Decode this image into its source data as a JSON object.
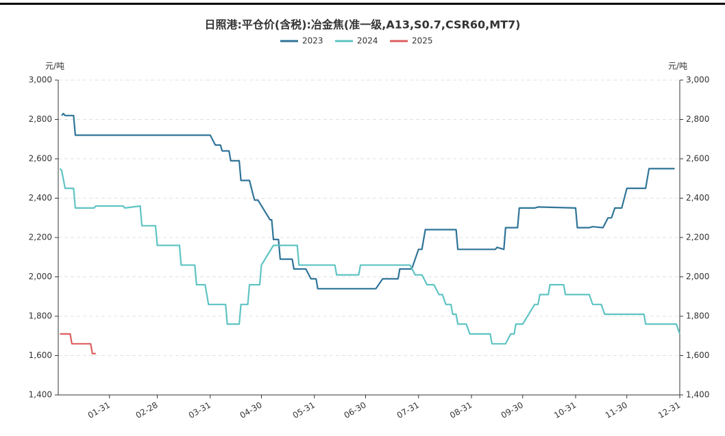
{
  "chart_data": {
    "type": "line",
    "title": "日照港:平仓价(含税):冶金焦(准一级,A13,S0.7,CSR60,MT7)",
    "y_label": "元/吨",
    "y2_label": "元/吨",
    "xlim": [
      "01-01",
      "12-31"
    ],
    "xticks": [
      "01-31",
      "02-28",
      "03-31",
      "04-30",
      "05-31",
      "06-30",
      "07-31",
      "08-31",
      "09-30",
      "10-31",
      "11-30",
      "12-31"
    ],
    "ylim": [
      1400,
      3000
    ],
    "yticks": [
      {
        "value": 1400,
        "label": "1,400"
      },
      {
        "value": 1600,
        "label": "1,600"
      },
      {
        "value": 1800,
        "label": "1,800"
      },
      {
        "value": 2000,
        "label": "2,000"
      },
      {
        "value": 2200,
        "label": "2,200"
      },
      {
        "value": 2400,
        "label": "2,400"
      },
      {
        "value": 2600,
        "label": "2,600"
      },
      {
        "value": 2800,
        "label": "2,800"
      },
      {
        "value": 3000,
        "label": "3,000"
      }
    ],
    "y2lim": [
      1400,
      3000
    ],
    "y2ticks": [
      {
        "value": 1400,
        "label": "1,400"
      },
      {
        "value": 1600,
        "label": "1,600"
      },
      {
        "value": 1800,
        "label": "1,800"
      },
      {
        "value": 2000,
        "label": "2,000"
      },
      {
        "value": 2200,
        "label": "2,200"
      },
      {
        "value": 2400,
        "label": "2,400"
      },
      {
        "value": 2600,
        "label": "2,600"
      },
      {
        "value": 2800,
        "label": "2,800"
      },
      {
        "value": 3000,
        "label": "3,000"
      }
    ],
    "grid": true,
    "legend": "top",
    "series": [
      {
        "name": "2023",
        "color": "#2e7398",
        "x": [
          "01-03",
          "01-04",
          "01-05",
          "01-10",
          "01-11",
          "03-31",
          "04-03",
          "04-06",
          "04-07",
          "04-11",
          "04-12",
          "04-17",
          "04-18",
          "04-23",
          "04-25",
          "04-26",
          "04-28",
          "05-05",
          "05-06",
          "05-07",
          "05-10",
          "05-11",
          "05-18",
          "05-19",
          "05-26",
          "05-29",
          "06-01",
          "06-02",
          "07-06",
          "07-10",
          "07-19",
          "07-20",
          "07-27",
          "07-31",
          "08-02",
          "08-04",
          "08-22",
          "08-23",
          "09-14",
          "09-15",
          "09-19",
          "09-20",
          "09-27",
          "09-28",
          "10-07",
          "10-09",
          "10-31",
          "11-01",
          "11-08",
          "11-10",
          "11-16",
          "11-19",
          "11-21",
          "11-23",
          "11-27",
          "11-30",
          "12-11",
          "12-13",
          "12-28"
        ],
        "values": [
          2820,
          2830,
          2820,
          2820,
          2720,
          2720,
          2670,
          2670,
          2640,
          2640,
          2590,
          2590,
          2490,
          2490,
          2420,
          2390,
          2390,
          2290,
          2290,
          2190,
          2190,
          2090,
          2090,
          2040,
          2040,
          1990,
          1990,
          1940,
          1940,
          1990,
          1990,
          2040,
          2040,
          2140,
          2140,
          2240,
          2240,
          2140,
          2140,
          2150,
          2140,
          2250,
          2250,
          2350,
          2350,
          2355,
          2350,
          2250,
          2250,
          2255,
          2250,
          2300,
          2300,
          2350,
          2350,
          2450,
          2450,
          2550,
          2550
        ]
      },
      {
        "name": "2024",
        "color": "#5ec3c3",
        "x": [
          "01-02",
          "01-03",
          "01-05",
          "01-10",
          "01-11",
          "01-22",
          "01-23",
          "02-08",
          "02-09",
          "02-18",
          "02-19",
          "02-27",
          "02-28",
          "03-13",
          "03-14",
          "03-22",
          "03-23",
          "03-28",
          "03-30",
          "04-09",
          "04-10",
          "04-17",
          "04-18",
          "04-22",
          "04-23",
          "04-29",
          "04-30",
          "05-07",
          "05-21",
          "05-22",
          "06-12",
          "06-13",
          "06-26",
          "06-27",
          "07-26",
          "07-29",
          "08-02",
          "08-05",
          "08-09",
          "08-12",
          "08-14",
          "08-16",
          "08-19",
          "08-20",
          "08-22",
          "08-23",
          "08-28",
          "08-30",
          "09-11",
          "09-12",
          "09-20",
          "09-23",
          "09-25",
          "09-26",
          "09-30",
          "10-07",
          "10-09",
          "10-10",
          "10-15",
          "10-16",
          "10-24",
          "10-25",
          "11-08",
          "11-10",
          "11-15",
          "11-17",
          "12-10",
          "12-11",
          "12-29",
          "12-31"
        ],
        "values": [
          2550,
          2540,
          2450,
          2450,
          2350,
          2350,
          2360,
          2360,
          2350,
          2360,
          2260,
          2260,
          2160,
          2160,
          2060,
          2060,
          1960,
          1960,
          1860,
          1860,
          1760,
          1760,
          1860,
          1860,
          1960,
          1960,
          2060,
          2160,
          2160,
          2060,
          2060,
          2010,
          2010,
          2060,
          2060,
          2010,
          2010,
          1960,
          1960,
          1910,
          1910,
          1860,
          1860,
          1810,
          1810,
          1760,
          1760,
          1710,
          1710,
          1660,
          1660,
          1710,
          1710,
          1760,
          1760,
          1860,
          1860,
          1910,
          1910,
          1960,
          1960,
          1910,
          1910,
          1860,
          1860,
          1810,
          1810,
          1760,
          1760,
          1710
        ]
      },
      {
        "name": "2025",
        "color": "#dd5e5e",
        "x": [
          "01-02",
          "01-08",
          "01-09",
          "01-20",
          "01-21",
          "01-23"
        ],
        "values": [
          1710,
          1710,
          1660,
          1660,
          1610,
          1610
        ]
      }
    ]
  }
}
